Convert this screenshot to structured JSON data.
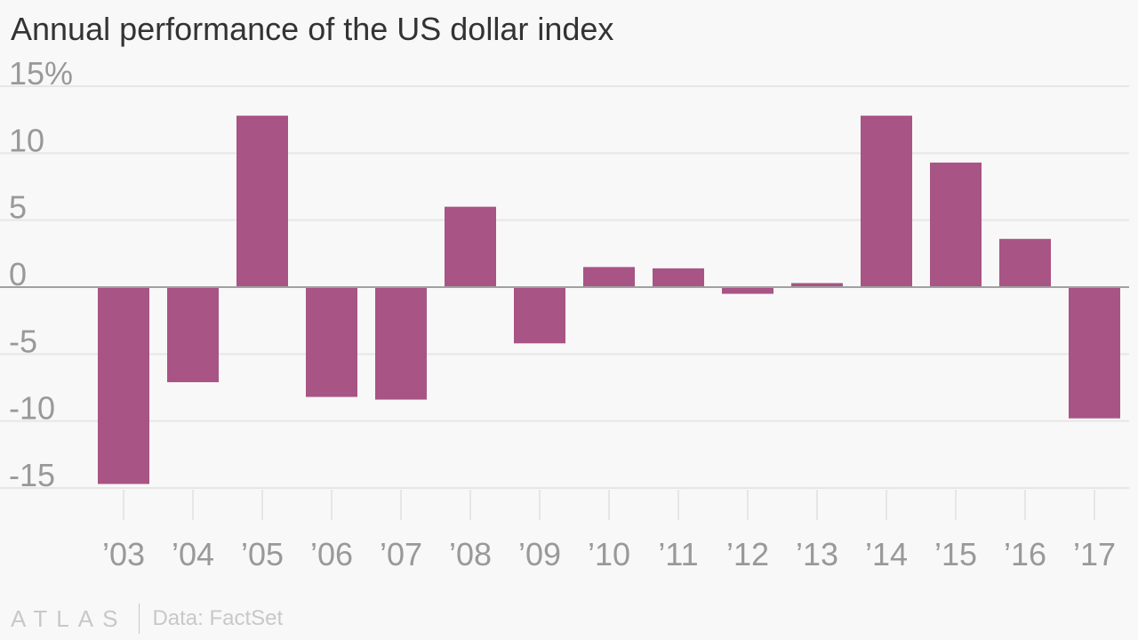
{
  "title": "Annual performance of the US dollar index",
  "footer": {
    "brand": "ATLAS",
    "source": "Data: FactSet"
  },
  "colors": {
    "bar": "#a85484",
    "grid": "#e6e6e6",
    "zero_line": "#a0a0a0",
    "tick_text": "#999999",
    "background": "#f8f8f8"
  },
  "chart_data": {
    "type": "bar",
    "title": "Annual performance of the US dollar index",
    "xlabel": "",
    "ylabel": "",
    "categories": [
      "’03",
      "’04",
      "’05",
      "’06",
      "’07",
      "’08",
      "’09",
      "’10",
      "’11",
      "’12",
      "’13",
      "’14",
      "’15",
      "’16",
      "’17"
    ],
    "values": [
      -14.7,
      -7.1,
      12.8,
      -8.2,
      -8.4,
      6.0,
      -4.2,
      1.5,
      1.4,
      -0.5,
      0.3,
      12.8,
      9.3,
      3.6,
      -9.8
    ],
    "ylim": [
      -15,
      15
    ],
    "yticks": [
      15,
      10,
      5,
      0,
      -5,
      -10,
      -15
    ],
    "ytick_labels": [
      "15%",
      "10",
      "5",
      "0",
      "-5",
      "-10",
      "-15"
    ],
    "grid": true
  }
}
